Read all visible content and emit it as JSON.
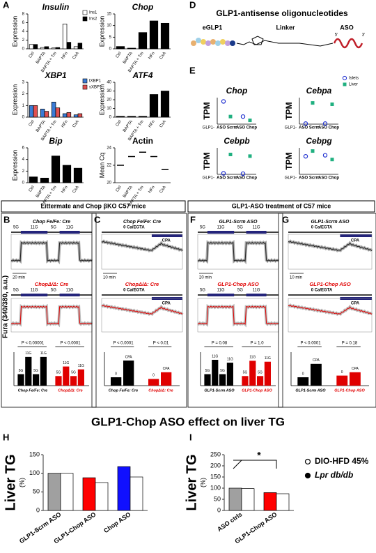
{
  "panel_labels": [
    "A",
    "D",
    "E",
    "B",
    "C",
    "F",
    "G",
    "H",
    "I"
  ],
  "a_charts": [
    {
      "type": "bar",
      "title": "Insulin",
      "ylabel": "Expression",
      "categories": [
        "Ctrl",
        "BAPTA",
        "BAPTA + Tm",
        "HFn",
        "CsA"
      ],
      "legend": true,
      "series": [
        {
          "name": "Ins1",
          "color": "#ffffff",
          "values": [
            1,
            0.3,
            0.2,
            5.7,
            0.5
          ]
        },
        {
          "name": "Ins2",
          "color": "#000000",
          "values": [
            1,
            0.5,
            0.3,
            1.5,
            1.3
          ]
        }
      ],
      "ylim": [
        0,
        8
      ],
      "yticks": [
        0,
        2,
        4,
        6,
        8
      ]
    },
    {
      "type": "bar",
      "title": "Chop",
      "ylabel": "Expression",
      "categories": [
        "Ctrl",
        "BAPTA",
        "BAPTA + Tm",
        "HFn",
        "CsA"
      ],
      "series": [
        {
          "color": "#000000",
          "values": [
            1,
            0.3,
            7,
            12,
            11
          ]
        }
      ],
      "ylim": [
        0,
        15
      ],
      "yticks": [
        0,
        5,
        10,
        15
      ]
    },
    {
      "type": "bar",
      "title": "XBP1",
      "ylabel": "Expression",
      "categories": [
        "Ctrl",
        "BAPTA",
        "BAPTA + Tm",
        "HFn",
        "CsA"
      ],
      "legend": true,
      "series": [
        {
          "name": "tXBP1",
          "color": "#3a7bd5",
          "values": [
            1,
            0.7,
            1.3,
            0.3,
            0.2
          ]
        },
        {
          "name": "sXBP1",
          "color": "#e05050",
          "values": [
            1,
            0.5,
            0.8,
            0.4,
            0.3
          ]
        }
      ],
      "ylim": [
        0,
        3
      ],
      "yticks": [
        0,
        1,
        2,
        3
      ]
    },
    {
      "type": "bar",
      "title": "ATF4",
      "ylabel": "Expression",
      "categories": [
        "Ctrl",
        "BAPTA",
        "BAPTA + Tm",
        "HFn",
        "CsA"
      ],
      "series": [
        {
          "color": "#000000",
          "values": [
            1,
            1,
            1,
            26,
            30
          ]
        }
      ],
      "ylim": [
        0,
        40
      ],
      "yticks": [
        0,
        10,
        20,
        30,
        40
      ]
    },
    {
      "type": "bar",
      "title": "Bip",
      "ylabel": "Expression",
      "categories": [
        "Ctrl",
        "BAPTA",
        "BAPTA + Tm",
        "HFn",
        "CsA"
      ],
      "series": [
        {
          "color": "#000000",
          "values": [
            1,
            0.8,
            4.6,
            3,
            2.5
          ]
        }
      ],
      "ylim": [
        0,
        6
      ],
      "yticks": [
        0,
        2,
        4,
        6
      ]
    },
    {
      "type": "dot",
      "title": "Actin",
      "ylabel": "Mean Cq",
      "categories": [
        "Ctrl",
        "BAPTA",
        "BAPTA + Tm",
        "HFn",
        "CsA"
      ],
      "series": [
        {
          "color": "#000000",
          "marker": "dash",
          "values": [
            22,
            23,
            23.5,
            23,
            21.5
          ]
        }
      ],
      "ylim": [
        20,
        24
      ],
      "yticks": [
        20,
        22,
        24
      ]
    }
  ],
  "d": {
    "title": "GLP1-antisense oligonucleotides",
    "egl": "eGLP1",
    "linker": "Linker",
    "aso": "ASO",
    "five": "5'",
    "three": "3'"
  },
  "e_charts": [
    {
      "type": "dot",
      "title": "Chop",
      "ylabel": "TPM",
      "row_label": "GLP1-",
      "categories": [
        "ASO Scrm",
        "ASO Chop"
      ],
      "legend": true,
      "series": [
        {
          "name": "Islets",
          "color": "#2030d0",
          "marker": "circle",
          "values": [
            30,
            10
          ]
        },
        {
          "name": "Liver",
          "color": "#20b080",
          "marker": "square",
          "values": [
            10,
            5
          ]
        }
      ],
      "ylim": [
        0,
        35
      ]
    },
    {
      "type": "dot",
      "title": "Cebpa",
      "ylabel": "TPM",
      "row_label": "GLP1-",
      "categories": [
        "ASO Scrm",
        "ASO Chop"
      ],
      "series": [
        {
          "color": "#2030d0",
          "marker": "circle",
          "values": [
            2,
            2
          ]
        },
        {
          "color": "#20b080",
          "marker": "square",
          "values": [
            80,
            75
          ]
        }
      ],
      "ylim": [
        0,
        100
      ]
    },
    {
      "type": "dot",
      "title": "Cebpb",
      "ylabel": "TPM",
      "row_label": "GLP1-",
      "categories": [
        "ASO Scrm",
        "ASO Chop"
      ],
      "series": [
        {
          "color": "#2030d0",
          "marker": "circle",
          "values": [
            3,
            2
          ]
        },
        {
          "color": "#20b080",
          "marker": "square",
          "values": [
            60,
            55
          ]
        }
      ],
      "ylim": [
        0,
        80
      ]
    },
    {
      "type": "dot",
      "title": "Cebpg",
      "ylabel": "TPM",
      "row_label": "GLP1-",
      "categories": [
        "ASO Scrm",
        "ASO Chop"
      ],
      "series": [
        {
          "color": "#2030d0",
          "marker": "circle",
          "values": [
            17,
            18
          ]
        },
        {
          "color": "#20b080",
          "marker": "square",
          "values": [
            22,
            14
          ]
        }
      ],
      "ylim": [
        0,
        25
      ]
    }
  ],
  "headers": [
    "Littermate and Chop βKO C57 mice",
    "GLP1-ASO treatment of C57 mice"
  ],
  "fura_label": "Fura (340/380, a.u.)",
  "traces": [
    {
      "kind": "step",
      "top_title": "Chop Fe/Fe: Cre",
      "bottom_title": "ChopΔ/Δ: Cre",
      "steps": [
        "5G",
        "11G",
        "5G",
        "11G"
      ],
      "scale": "20 min",
      "summary": {
        "ylim": [
          1,
          1.35
        ],
        "annotations": [
          "P < 0.00001",
          "P < 0.0001"
        ],
        "series": [
          {
            "name": "Chop Fe/Fe: Cre",
            "color": "#000000",
            "categories": [
              "5G",
              "11G",
              "5G",
              "11G"
            ],
            "values": [
              1.12,
              1.3,
              1.12,
              1.3
            ]
          },
          {
            "name": "ChopΔ/Δ: Cre",
            "color": "#e00000",
            "categories": [
              "5G",
              "11G",
              "5G",
              "11G"
            ],
            "values": [
              1.1,
              1.2,
              1.1,
              1.17
            ]
          }
        ]
      }
    },
    {
      "kind": "dip",
      "top_title": "Chop Fe/Fe: Cre",
      "bottom_title": "ChopΔ/Δ: Cre",
      "steps": [
        "0 Ca/EGTA",
        "CPA"
      ],
      "scale": "10 min",
      "summary": {
        "ylim": [
          0.8,
          1
        ],
        "annotations": [
          "P < 0.0001",
          "P < 0.01"
        ],
        "series": [
          {
            "name": "Chop Fe/Fe: Cre",
            "color": "#000000",
            "categories": [
              "0",
              "CPA"
            ],
            "values": [
              0.85,
              0.95
            ]
          },
          {
            "name": "ChopΔ/Δ: Cre",
            "color": "#e00000",
            "categories": [
              "0",
              "CPA"
            ],
            "values": [
              0.84,
              0.88
            ]
          }
        ]
      }
    },
    {
      "kind": "step",
      "top_title": "GLP1-Scrm ASO",
      "bottom_title": "GLP1-Chop ASO",
      "steps": [
        "5G",
        "11G",
        "5G",
        "11G"
      ],
      "scale": "20 min",
      "summary": {
        "ylim": [
          1,
          1.35
        ],
        "annotations": [
          "P = 0.08",
          "P = 1.0"
        ],
        "series": [
          {
            "name": "GLP1-Scrm ASO",
            "color": "#000000",
            "categories": [
              "5G",
              "11G",
              "5G",
              "11G"
            ],
            "values": [
              1.12,
              1.27,
              1.12,
              1.24
            ]
          },
          {
            "name": "GLP1-Chop ASO",
            "color": "#e00000",
            "categories": [
              "5G",
              "11G",
              "5G",
              "11G"
            ],
            "values": [
              1.1,
              1.26,
              1.1,
              1.25
            ]
          }
        ]
      }
    },
    {
      "kind": "dip",
      "top_title": "GLP1-Scrm ASO",
      "bottom_title": "GLP1-Chop ASO",
      "steps": [
        "0 Ca/EGTA",
        "CPA"
      ],
      "scale": "10 min",
      "summary": {
        "ylim": [
          0.8,
          1
        ],
        "annotations": [
          "P < 0.0001",
          "P = 0.18"
        ],
        "series": [
          {
            "name": "GLP1-Scrm ASO",
            "color": "#000000",
            "categories": [
              "0",
              "CPA"
            ],
            "values": [
              0.85,
              0.93
            ]
          },
          {
            "name": "GLP1-Chop ASO",
            "color": "#e00000",
            "categories": [
              "0",
              "CPA"
            ],
            "values": [
              0.86,
              0.88
            ]
          }
        ]
      }
    }
  ],
  "tg_title": "GLP1-Chop ASO effect on liver TG",
  "tg_charts": [
    {
      "type": "bar",
      "ylabel": "Liver TG",
      "y_unit": "(%)",
      "categories": [
        "GLP1-Scrm ASO",
        "GLP1-Chop ASO",
        "Chop ASO"
      ],
      "series": [
        {
          "colors": [
            "#a0a0a0",
            "#ff0000",
            "#1010ff"
          ],
          "values": [
            100,
            88,
            118
          ]
        },
        {
          "color": "#ffffff",
          "values": [
            100,
            75,
            90
          ]
        }
      ],
      "ylim": [
        0,
        150
      ],
      "yticks": [
        0,
        50,
        100,
        150
      ]
    },
    {
      "type": "bar",
      "ylabel": "Liver TG",
      "y_unit": "(%)",
      "categories": [
        "ASO ctrls",
        "GLP1-Chop ASO"
      ],
      "annotation": "*",
      "series": [
        {
          "colors": [
            "#a0a0a0",
            "#ff0000"
          ],
          "values": [
            100,
            80
          ]
        },
        {
          "color": "#ffffff",
          "values": [
            98,
            75
          ]
        }
      ],
      "ylim": [
        0,
        250
      ],
      "yticks": [
        0,
        50,
        100,
        150,
        200,
        250
      ]
    }
  ],
  "tg_legend": [
    "DIO-HFD 45%",
    "Lpr db/db"
  ]
}
